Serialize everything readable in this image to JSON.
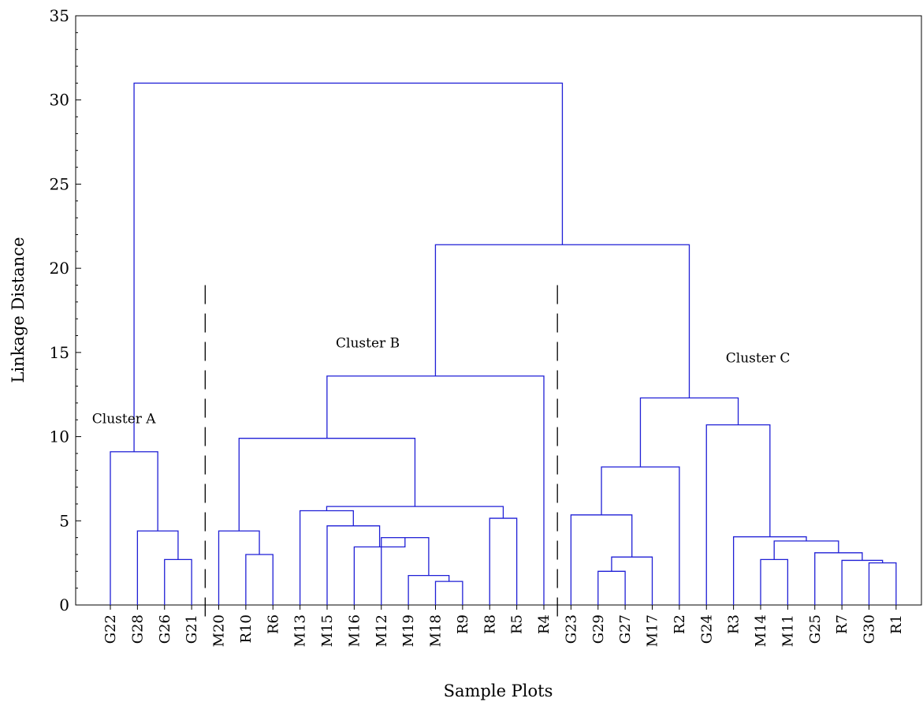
{
  "chart_data": {
    "type": "dendrogram",
    "title": "",
    "xlabel": "Sample Plots",
    "ylabel": "Linkage Distance",
    "ylim": [
      0,
      35
    ],
    "yticks": [
      0,
      5,
      10,
      15,
      20,
      25,
      30,
      35
    ],
    "leaves": [
      "G22",
      "G28",
      "G26",
      "G21",
      "M20",
      "R10",
      "R6",
      "M13",
      "M15",
      "M16",
      "M12",
      "M19",
      "M18",
      "R9",
      "R8",
      "R5",
      "R4",
      "G23",
      "G29",
      "G27",
      "M17",
      "R2",
      "G24",
      "R3",
      "M14",
      "M11",
      "G25",
      "R7",
      "G30",
      "R1"
    ],
    "merges": [
      {
        "id": "m1",
        "left": "M18",
        "right": "R9",
        "height": 1.4
      },
      {
        "id": "m2",
        "left": "M19",
        "right": "m1",
        "height": 1.75
      },
      {
        "id": "m3",
        "left": "M12",
        "right": "m2",
        "height": 4.0
      },
      {
        "id": "m4",
        "left": "M16",
        "right": "m3",
        "height": 3.45
      },
      {
        "id": "m5",
        "left": "M15",
        "right": "m4",
        "height": 4.7
      },
      {
        "id": "m6",
        "left": "M13",
        "right": "m5",
        "height": 5.6
      },
      {
        "id": "m7",
        "left": "R8",
        "right": "R5",
        "height": 5.15
      },
      {
        "id": "m8",
        "left": "m6",
        "right": "m7",
        "height": 5.85
      },
      {
        "id": "m9",
        "left": "R10",
        "right": "R6",
        "height": 3.0
      },
      {
        "id": "m10",
        "left": "M20",
        "right": "m9",
        "height": 4.4
      },
      {
        "id": "m11",
        "left": "m10",
        "right": "m8",
        "height": 9.9
      },
      {
        "id": "m12",
        "left": "m11",
        "right": "R4",
        "height": 13.6
      },
      {
        "id": "m13",
        "left": "G26",
        "right": "G21",
        "height": 2.7
      },
      {
        "id": "m14",
        "left": "G28",
        "right": "m13",
        "height": 4.4
      },
      {
        "id": "m15",
        "left": "G22",
        "right": "m14",
        "height": 9.1
      },
      {
        "id": "m16",
        "left": "G29",
        "right": "G27",
        "height": 2.0
      },
      {
        "id": "m17",
        "left": "m16",
        "right": "M17",
        "height": 2.85
      },
      {
        "id": "m18",
        "left": "G23",
        "right": "m17",
        "height": 5.35
      },
      {
        "id": "m19",
        "left": "m18",
        "right": "R2",
        "height": 8.2
      },
      {
        "id": "m20",
        "left": "G30",
        "right": "R1",
        "height": 2.5
      },
      {
        "id": "m21",
        "left": "R7",
        "right": "m20",
        "height": 2.65
      },
      {
        "id": "m22",
        "left": "G25",
        "right": "m21",
        "height": 3.1
      },
      {
        "id": "m23",
        "left": "M14",
        "right": "M11",
        "height": 2.7
      },
      {
        "id": "m24",
        "left": "m23",
        "right": "m22",
        "height": 3.8
      },
      {
        "id": "m25",
        "left": "R3",
        "right": "m24",
        "height": 4.05
      },
      {
        "id": "m26",
        "left": "G24",
        "right": "m25",
        "height": 10.7
      },
      {
        "id": "m27",
        "left": "m19",
        "right": "m26",
        "height": 12.3
      },
      {
        "id": "m28",
        "left": "m12",
        "right": "m27",
        "height": 21.4
      },
      {
        "id": "m29",
        "left": "m15",
        "right": "m28",
        "height": 31.0
      }
    ],
    "annotations": [
      {
        "text": "Cluster A",
        "anchor": "G22",
        "offset": 0.5,
        "y": 10.8
      },
      {
        "text": "Cluster B",
        "anchor": "M16",
        "offset": 0.5,
        "y": 15.3
      },
      {
        "text": "Cluster C",
        "anchor": "M14",
        "offset": -0.1,
        "y": 14.4
      }
    ],
    "separators": [
      {
        "between": [
          "G21",
          "M20"
        ],
        "y_top": 19.0
      },
      {
        "between": [
          "R4",
          "G23"
        ],
        "y_top": 19.0
      }
    ],
    "line_color": "#1f1fd6",
    "separator_color": "#000000",
    "grid": false
  }
}
